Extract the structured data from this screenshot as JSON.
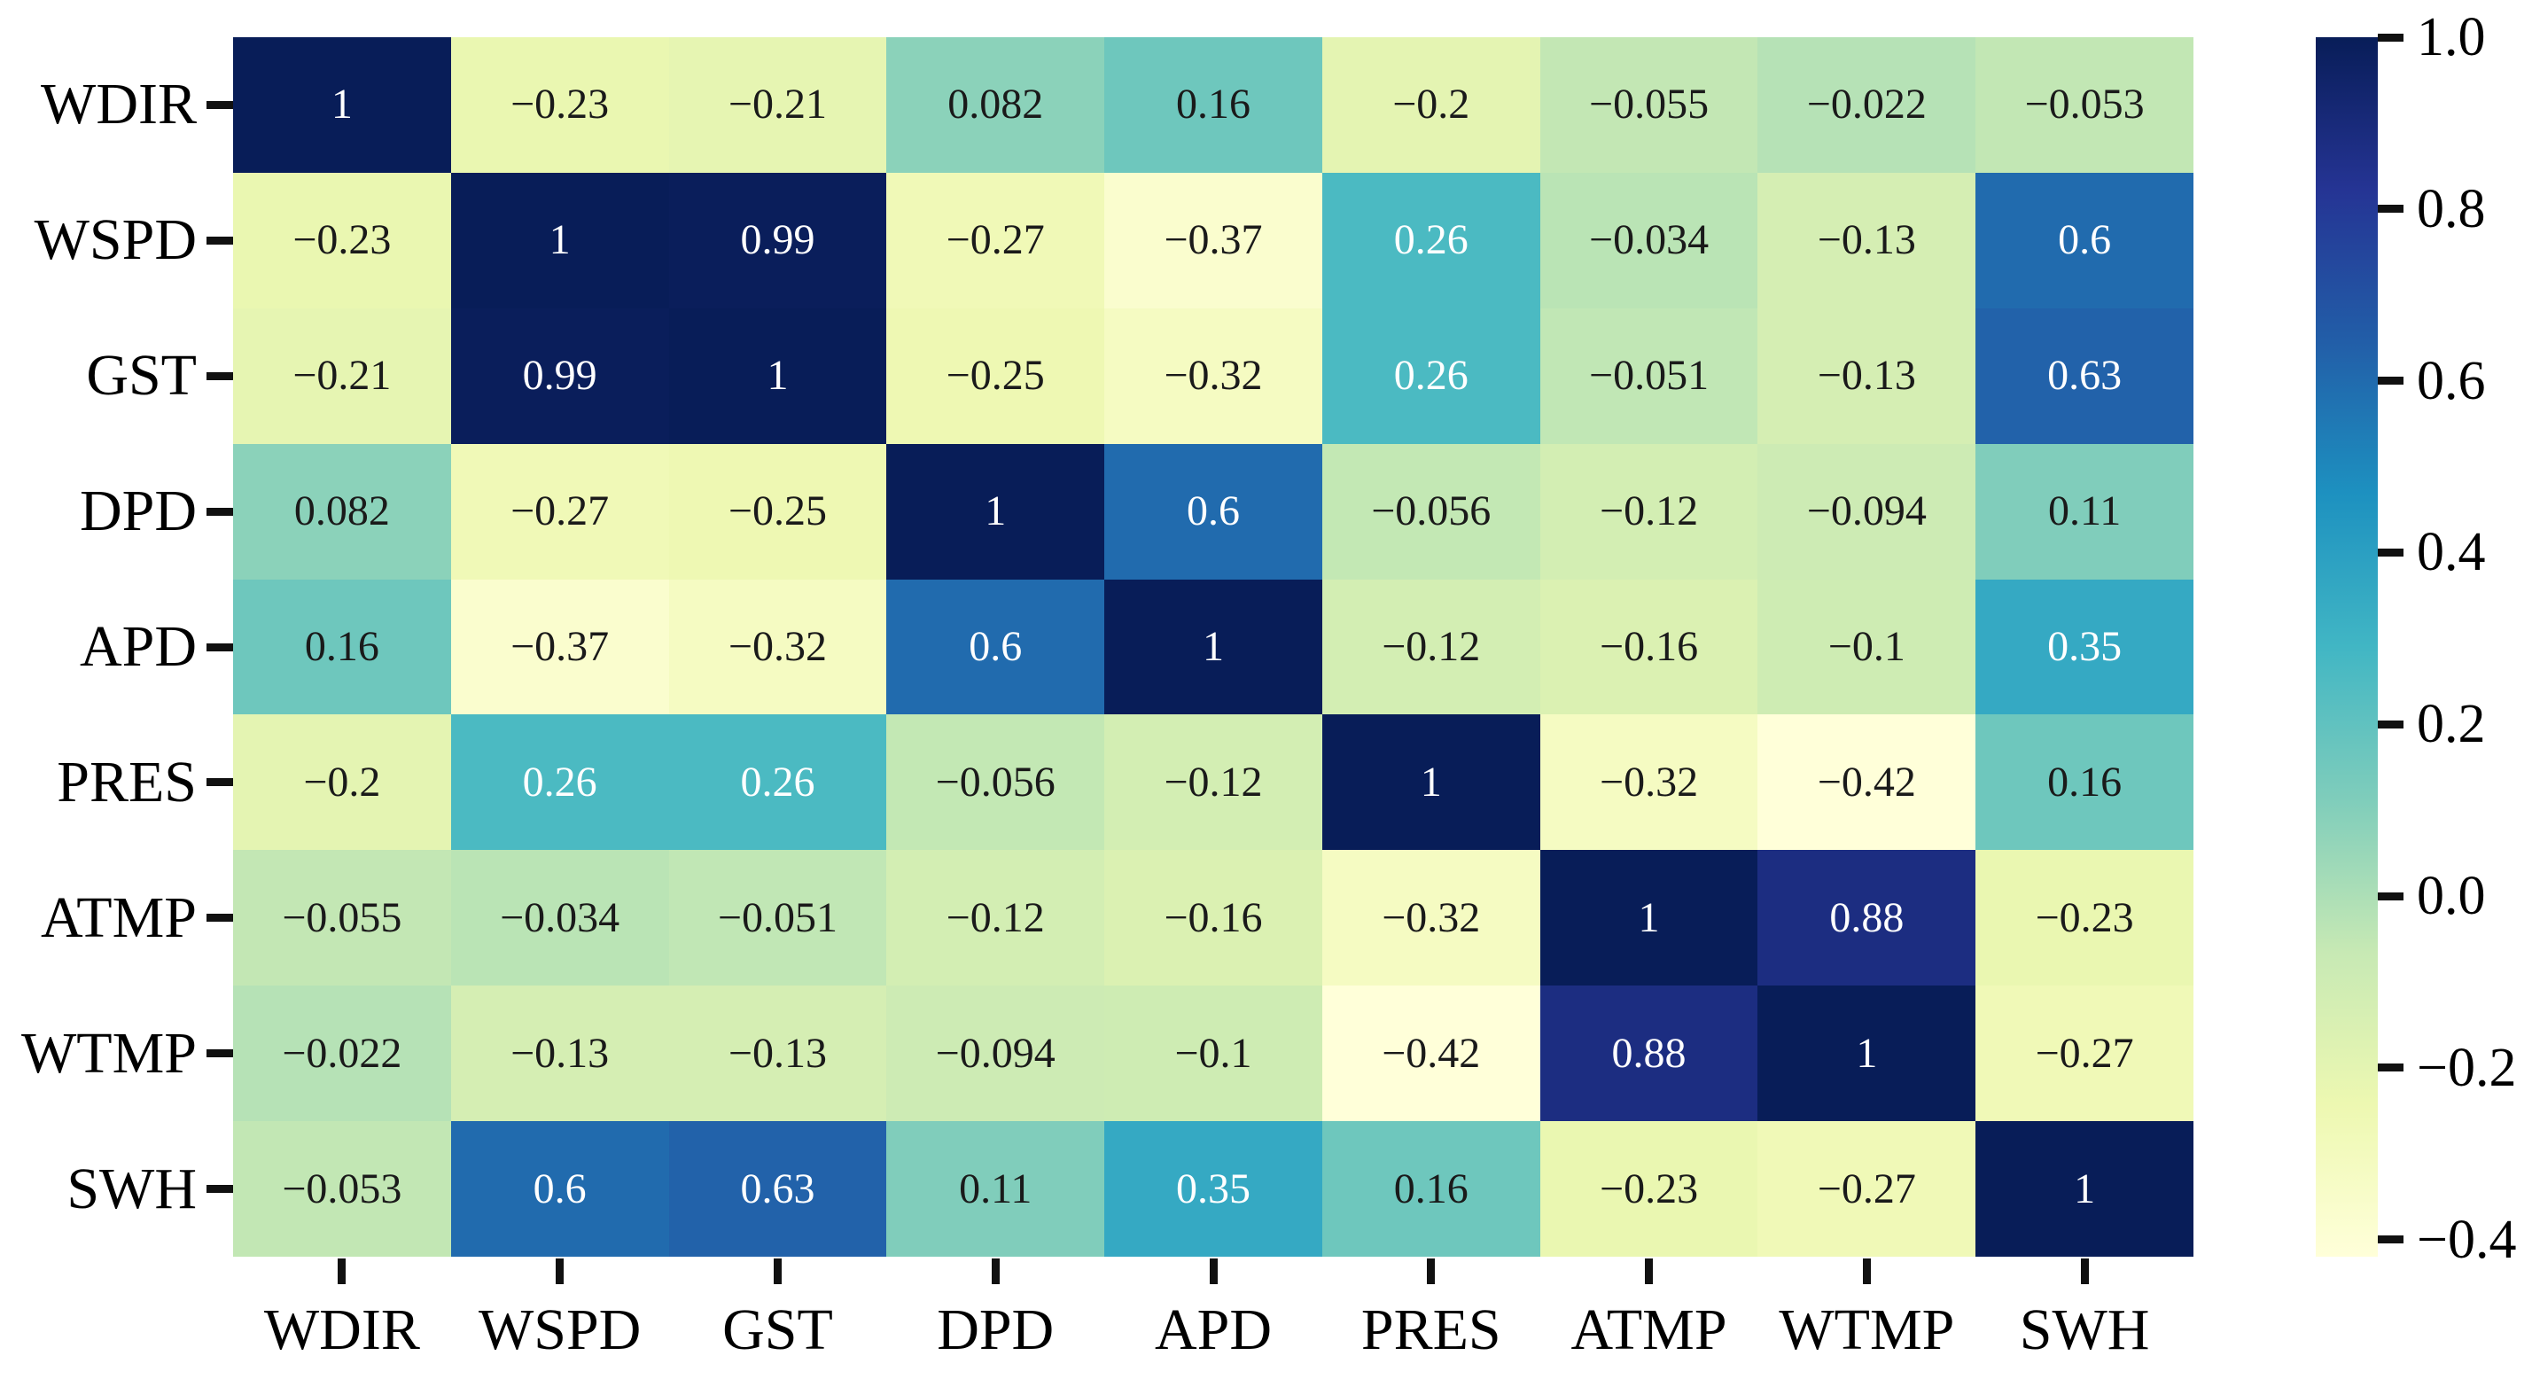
{
  "figure": {
    "background": "#ffffff",
    "title": ""
  },
  "chart_data": {
    "type": "heatmap",
    "title": "",
    "xlabel": "",
    "ylabel": "",
    "x_categories": [
      "WDIR",
      "WSPD",
      "GST",
      "DPD",
      "APD",
      "PRES",
      "ATMP",
      "WTMP",
      "SWH"
    ],
    "y_categories": [
      "WDIR",
      "WSPD",
      "GST",
      "DPD",
      "APD",
      "PRES",
      "ATMP",
      "WTMP",
      "SWH"
    ],
    "values": [
      [
        1,
        -0.23,
        -0.21,
        0.082,
        0.16,
        -0.2,
        -0.055,
        -0.022,
        -0.053
      ],
      [
        -0.23,
        1,
        0.99,
        -0.27,
        -0.37,
        0.26,
        -0.034,
        -0.13,
        0.6
      ],
      [
        -0.21,
        0.99,
        1,
        -0.25,
        -0.32,
        0.26,
        -0.051,
        -0.13,
        0.63
      ],
      [
        0.082,
        -0.27,
        -0.25,
        1,
        0.6,
        -0.056,
        -0.12,
        -0.094,
        0.11
      ],
      [
        0.16,
        -0.37,
        -0.32,
        0.6,
        1,
        -0.12,
        -0.16,
        -0.1,
        0.35
      ],
      [
        -0.2,
        0.26,
        0.26,
        -0.056,
        -0.12,
        1,
        -0.32,
        -0.42,
        0.16
      ],
      [
        -0.055,
        -0.034,
        -0.051,
        -0.12,
        -0.16,
        -0.32,
        1,
        0.88,
        -0.23
      ],
      [
        -0.022,
        -0.13,
        -0.13,
        -0.094,
        -0.1,
        -0.42,
        0.88,
        1,
        -0.27
      ],
      [
        -0.053,
        0.6,
        0.63,
        0.11,
        0.35,
        0.16,
        -0.23,
        -0.27,
        1
      ]
    ],
    "annotations": [
      [
        "1",
        "−0.23",
        "−0.21",
        "0.082",
        "0.16",
        "−0.2",
        "−0.055",
        "−0.022",
        "−0.053"
      ],
      [
        "−0.23",
        "1",
        "0.99",
        "−0.27",
        "−0.37",
        "0.26",
        "−0.034",
        "−0.13",
        "0.6"
      ],
      [
        "−0.21",
        "0.99",
        "1",
        "−0.25",
        "−0.32",
        "0.26",
        "−0.051",
        "−0.13",
        "0.63"
      ],
      [
        "0.082",
        "−0.27",
        "−0.25",
        "1",
        "0.6",
        "−0.056",
        "−0.12",
        "−0.094",
        "0.11"
      ],
      [
        "0.16",
        "−0.37",
        "−0.32",
        "0.6",
        "1",
        "−0.12",
        "−0.16",
        "−0.1",
        "0.35"
      ],
      [
        "−0.2",
        "0.26",
        "0.26",
        "−0.056",
        "−0.12",
        "1",
        "−0.32",
        "−0.42",
        "0.16"
      ],
      [
        "−0.055",
        "−0.034",
        "−0.051",
        "−0.12",
        "−0.16",
        "−0.32",
        "1",
        "0.88",
        "−0.23"
      ],
      [
        "−0.022",
        "−0.13",
        "−0.13",
        "−0.094",
        "−0.1",
        "−0.42",
        "0.88",
        "1",
        "−0.27"
      ],
      [
        "−0.053",
        "0.6",
        "0.63",
        "0.11",
        "0.35",
        "0.16",
        "−0.23",
        "−0.27",
        "1"
      ]
    ],
    "vmin": -0.42,
    "vmax": 1.0,
    "colormap": "YlGnBu",
    "colormap_anchors": [
      "#ffffd9",
      "#edf8b1",
      "#c7e9b4",
      "#7fcdbb",
      "#41b6c4",
      "#1d91c0",
      "#225ea8",
      "#253494",
      "#081d58"
    ],
    "annotation_text_dark": "#1a1a1a",
    "annotation_text_light": "#ffffff",
    "luminance_threshold": 0.408,
    "grid": false,
    "colorbar": {
      "position": "right",
      "tick_values": [
        1.0,
        0.8,
        0.6,
        0.4,
        0.2,
        0.0,
        -0.2,
        -0.4
      ],
      "tick_labels": [
        "1.0",
        "0.8",
        "0.6",
        "0.4",
        "0.2",
        "0.0",
        "−0.2",
        "−0.4"
      ]
    }
  }
}
